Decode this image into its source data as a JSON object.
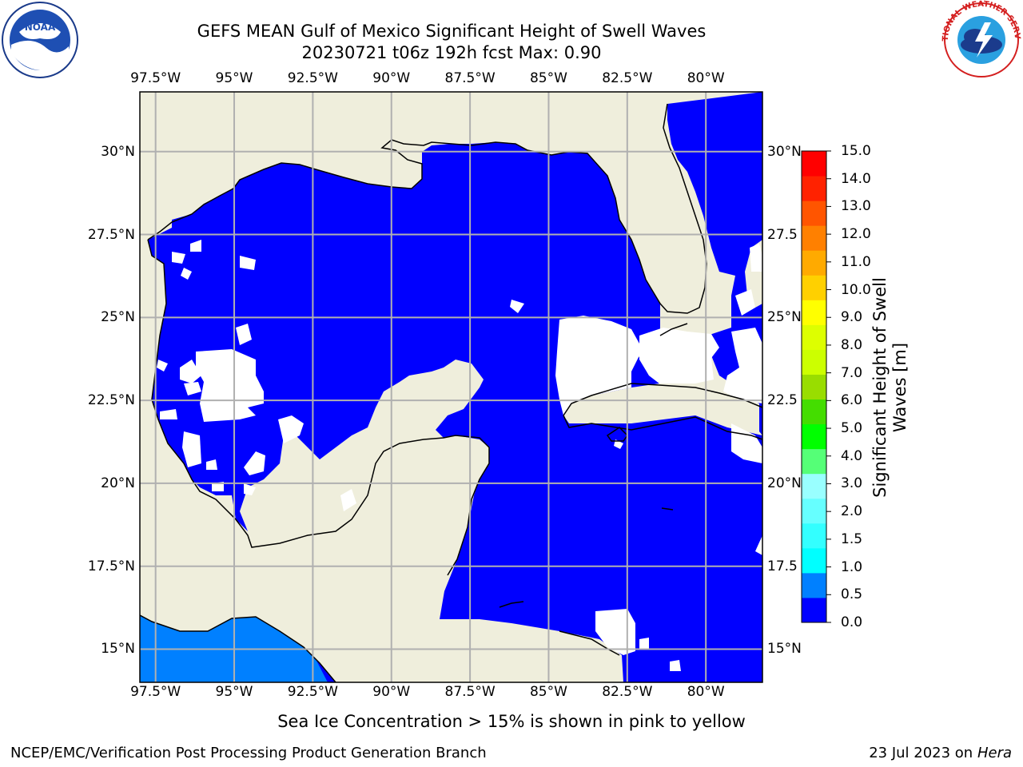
{
  "title": {
    "line1": "GEFS MEAN Gulf of Mexico Significant Height of Swell Waves",
    "line2": "20230721 t06z 192h fcst   Max: 0.90"
  },
  "map": {
    "lon_labels": [
      "97.5°W",
      "95°W",
      "92.5°W",
      "90°W",
      "87.5°W",
      "85°W",
      "82.5°W",
      "80°W"
    ],
    "lat_labels_left": [
      "30°N",
      "27.5°N",
      "25°N",
      "22.5°N",
      "20°N",
      "17.5°N",
      "15°N"
    ],
    "lat_labels_right": [
      "30°N",
      "27.5",
      "25°N",
      "22.5",
      "20°N",
      "17.5",
      "15°N"
    ],
    "lon_range": [
      -98,
      -78.2
    ],
    "lat_range": [
      14,
      31.8
    ],
    "gridlines": true,
    "colors": {
      "land": "#efeedc",
      "swell_0_0.5": "#0000ff",
      "swell_0.5_1.0": "#0080ff",
      "no_data": "#ffffff",
      "grid": "#b0b0b0"
    }
  },
  "colorbar": {
    "label": "Significant Height of Swell Waves [m]",
    "ticks": [
      "0.0",
      "0.5",
      "1.0",
      "1.5",
      "2.0",
      "3.0",
      "4.0",
      "5.0",
      "6.0",
      "7.0",
      "8.0",
      "9.0",
      "10.0",
      "11.0",
      "12.0",
      "13.0",
      "14.0",
      "15.0"
    ],
    "colors": [
      "#0000ff",
      "#0080ff",
      "#00ffff",
      "#33ffff",
      "#66ffff",
      "#99ffff",
      "#55ff77",
      "#00ff00",
      "#44dd00",
      "#99dd00",
      "#ccff00",
      "#ddff00",
      "#ffff00",
      "#ffd000",
      "#ffaa00",
      "#ff8000",
      "#ff5500",
      "#ff2200",
      "#ff0000"
    ]
  },
  "footer": {
    "note": "Sea Ice Concentration > 15% is shown in pink to yellow",
    "credit": "NCEP/EMC/Verification Post Processing Product Generation Branch",
    "date": "23 Jul 2023 on",
    "machine": "Hera"
  },
  "logos": {
    "left": "noaa-logo",
    "right": "nws-logo",
    "right_text": "NATIONAL WEATHER SERVICE"
  }
}
